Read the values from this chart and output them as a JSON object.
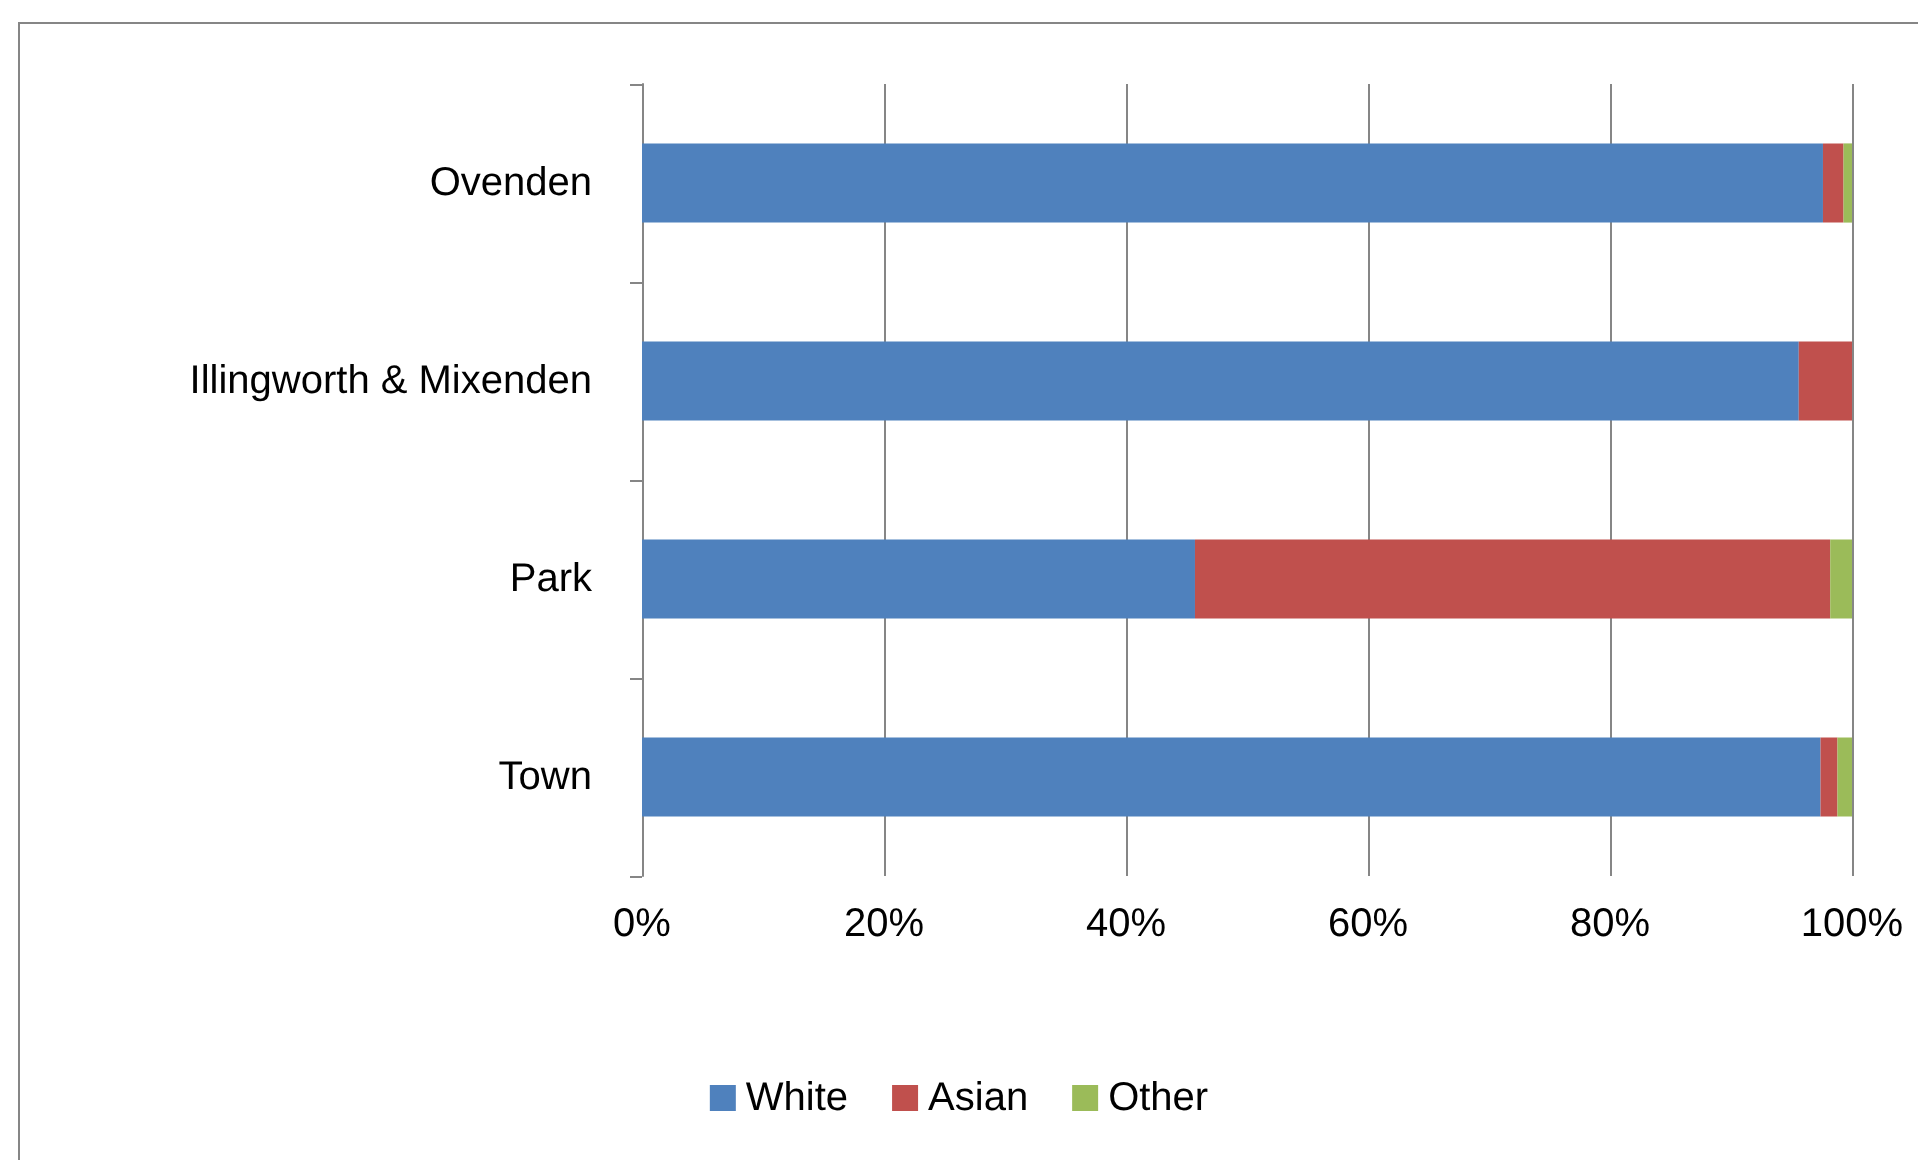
{
  "chart_data": {
    "type": "bar",
    "orientation": "horizontal",
    "stacked": true,
    "categories": [
      "Ovenden",
      "Illingworth & Mixenden",
      "Park",
      "Town"
    ],
    "series": [
      {
        "name": "White",
        "color": "#4f81bd",
        "values": [
          97.6,
          95.6,
          45.7,
          97.4
        ]
      },
      {
        "name": "Asian",
        "color": "#c0504d",
        "values": [
          1.7,
          4.4,
          52.5,
          1.4
        ]
      },
      {
        "name": "Other",
        "color": "#9bbb59",
        "values": [
          0.7,
          0,
          1.8,
          1.2
        ]
      }
    ],
    "xlim": [
      0,
      100
    ],
    "xticks": [
      {
        "value": 0,
        "label": "0%"
      },
      {
        "value": 20,
        "label": "20%"
      },
      {
        "value": 40,
        "label": "40%"
      },
      {
        "value": 60,
        "label": "60%"
      },
      {
        "value": 80,
        "label": "80%"
      },
      {
        "value": 100,
        "label": "100%"
      }
    ],
    "grid": "x",
    "legend": "bottom"
  }
}
